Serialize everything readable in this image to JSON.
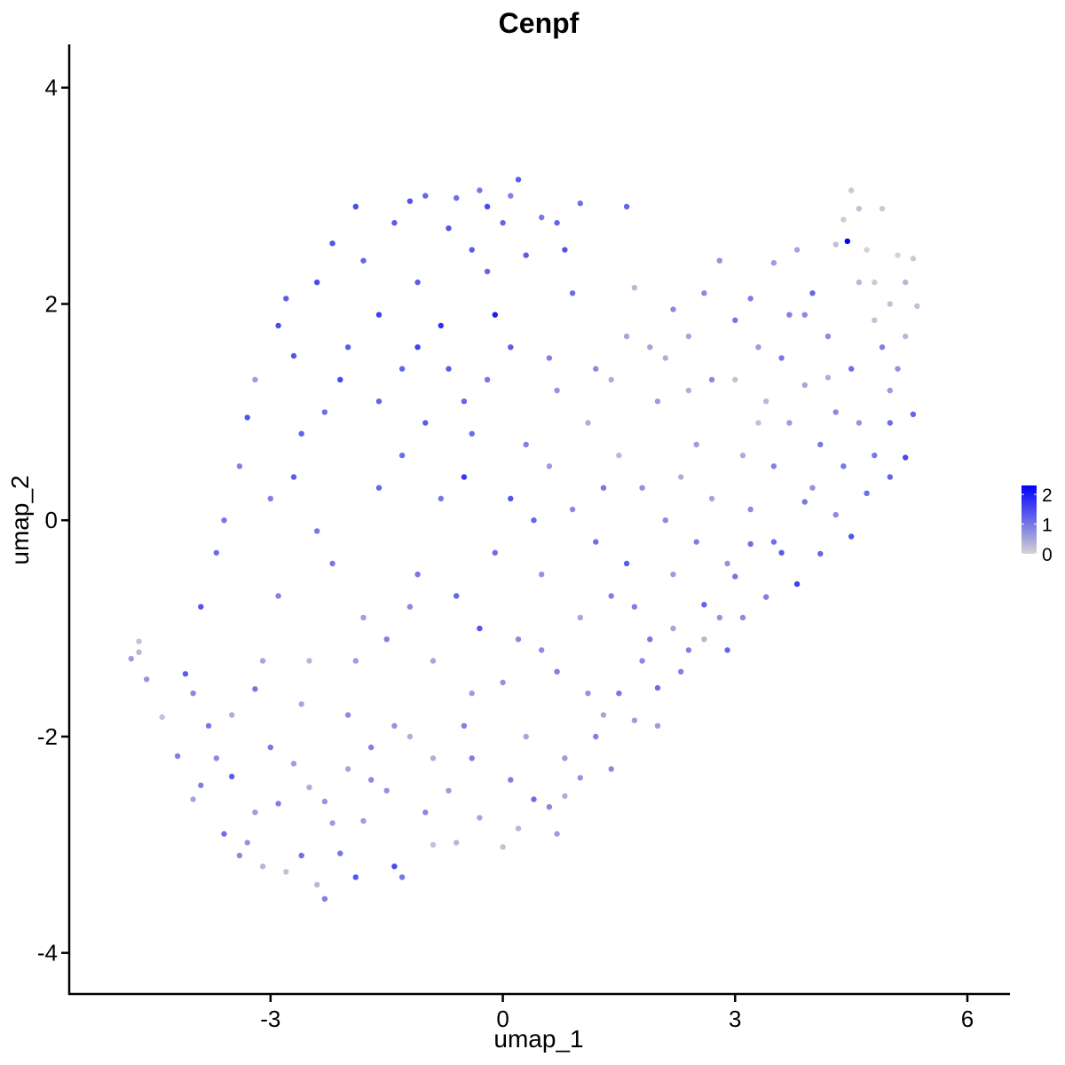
{
  "chart_data": {
    "type": "scatter",
    "title": "Cenpf",
    "xlabel": "umap_1",
    "ylabel": "umap_2",
    "xlim": [
      -5.6,
      6.55
    ],
    "ylim": [
      -4.38,
      4.4
    ],
    "x_ticks": [
      -3,
      0,
      3,
      6
    ],
    "x_tick_labels": [
      "-3",
      "0",
      "3",
      "6"
    ],
    "y_ticks": [
      -4,
      -2,
      0,
      2,
      4
    ],
    "y_tick_labels": [
      "-4",
      "-2",
      "0",
      "2",
      "4"
    ],
    "grid": false,
    "legend": {
      "placement": "right",
      "type": "colorbar",
      "breaks": [
        2,
        1,
        0
      ],
      "labels": [
        "2",
        "1",
        "0"
      ],
      "range": [
        0,
        2.3
      ]
    },
    "colors": {
      "low": "#d3d3d3",
      "high": "#0000ff"
    },
    "point_columns": [
      "umap_1",
      "umap_2",
      "expression"
    ],
    "points": [
      [
        -4.8,
        -1.28,
        0.6
      ],
      [
        -4.7,
        -1.22,
        0.3
      ],
      [
        -4.7,
        -1.12,
        0.2
      ],
      [
        -4.6,
        -1.47,
        0.7
      ],
      [
        -4.4,
        -1.82,
        0.2
      ],
      [
        -4.2,
        -2.18,
        0.9
      ],
      [
        -4.1,
        -1.42,
        1.3
      ],
      [
        -4.0,
        -1.6,
        0.8
      ],
      [
        -4.0,
        -2.58,
        0.5
      ],
      [
        -3.9,
        -2.45,
        0.9
      ],
      [
        -3.8,
        -1.9,
        1.0
      ],
      [
        -3.7,
        -2.2,
        0.8
      ],
      [
        -3.6,
        -2.9,
        1.1
      ],
      [
        -3.5,
        -2.37,
        1.3
      ],
      [
        -3.4,
        -3.1,
        0.8
      ],
      [
        -3.3,
        -2.98,
        0.7
      ],
      [
        -3.2,
        -1.56,
        1.0
      ],
      [
        -3.2,
        -2.7,
        0.6
      ],
      [
        -3.1,
        -3.2,
        0.3
      ],
      [
        -3.0,
        -2.1,
        1.0
      ],
      [
        -2.9,
        -2.62,
        0.9
      ],
      [
        -2.8,
        -3.25,
        0.2
      ],
      [
        -2.7,
        -2.25,
        0.6
      ],
      [
        -2.6,
        -3.1,
        1.1
      ],
      [
        -2.5,
        -2.47,
        0.4
      ],
      [
        -2.4,
        -3.37,
        0.3
      ],
      [
        -2.3,
        -3.5,
        0.9
      ],
      [
        -2.2,
        -2.8,
        0.6
      ],
      [
        -2.1,
        -3.08,
        1.0
      ],
      [
        -2.0,
        -2.3,
        0.5
      ],
      [
        -1.9,
        -3.3,
        1.4
      ],
      [
        -1.8,
        -2.78,
        0.6
      ],
      [
        -1.7,
        -2.1,
        0.9
      ],
      [
        -1.5,
        -2.5,
        0.7
      ],
      [
        -1.4,
        -3.2,
        1.5
      ],
      [
        -1.3,
        -3.3,
        1.0
      ],
      [
        -1.2,
        -2.0,
        0.4
      ],
      [
        -1.0,
        -2.7,
        0.8
      ],
      [
        -0.9,
        -3.0,
        0.2
      ],
      [
        -0.7,
        -2.5,
        0.6
      ],
      [
        -0.6,
        -2.98,
        0.3
      ],
      [
        -0.4,
        -2.2,
        0.9
      ],
      [
        -0.3,
        -2.75,
        0.5
      ],
      [
        0.0,
        -3.02,
        0.2
      ],
      [
        0.1,
        -2.4,
        0.9
      ],
      [
        0.2,
        -2.85,
        0.3
      ],
      [
        0.4,
        -2.58,
        1.1
      ],
      [
        0.6,
        -2.65,
        0.8
      ],
      [
        0.7,
        -2.9,
        0.6
      ],
      [
        0.8,
        -2.55,
        0.4
      ],
      [
        1.0,
        -2.38,
        0.7
      ],
      [
        1.2,
        -2.0,
        0.9
      ],
      [
        1.3,
        -1.8,
        0.5
      ],
      [
        1.5,
        -1.6,
        1.0
      ],
      [
        1.7,
        -1.85,
        0.6
      ],
      [
        1.8,
        -1.3,
        0.8
      ],
      [
        2.0,
        -1.55,
        1.1
      ],
      [
        2.2,
        -1.0,
        0.5
      ],
      [
        2.4,
        -1.2,
        0.9
      ],
      [
        2.6,
        -0.78,
        1.2
      ],
      [
        2.8,
        -0.9,
        0.7
      ],
      [
        3.0,
        -0.52,
        1.0
      ],
      [
        3.2,
        -0.22,
        1.1
      ],
      [
        3.4,
        -0.71,
        0.9
      ],
      [
        3.6,
        -0.3,
        1.3
      ],
      [
        3.8,
        -0.59,
        1.6
      ],
      [
        3.9,
        0.17,
        1.0
      ],
      [
        4.1,
        -0.31,
        1.2
      ],
      [
        4.3,
        0.05,
        0.8
      ],
      [
        4.5,
        -0.15,
        1.4
      ],
      [
        4.7,
        0.25,
        1.1
      ],
      [
        4.8,
        0.6,
        1.0
      ],
      [
        5.0,
        0.9,
        1.1
      ],
      [
        5.2,
        0.58,
        1.5
      ],
      [
        5.1,
        1.4,
        0.7
      ],
      [
        5.3,
        0.98,
        1.2
      ],
      [
        -3.9,
        -0.8,
        1.4
      ],
      [
        -3.7,
        -0.3,
        1.1
      ],
      [
        -3.6,
        0.0,
        1.0
      ],
      [
        -3.4,
        0.5,
        0.9
      ],
      [
        -3.3,
        0.95,
        1.4
      ],
      [
        -3.2,
        1.3,
        0.6
      ],
      [
        -3.0,
        0.2,
        0.9
      ],
      [
        -2.9,
        1.8,
        1.5
      ],
      [
        -2.8,
        2.05,
        1.3
      ],
      [
        -2.7,
        1.52,
        1.4
      ],
      [
        -2.6,
        0.8,
        1.2
      ],
      [
        -2.4,
        2.2,
        1.5
      ],
      [
        -2.3,
        1.0,
        1.1
      ],
      [
        -2.2,
        2.56,
        1.4
      ],
      [
        -2.0,
        1.6,
        1.3
      ],
      [
        -1.9,
        2.9,
        1.5
      ],
      [
        -1.8,
        2.4,
        1.2
      ],
      [
        -1.6,
        1.9,
        1.6
      ],
      [
        -1.4,
        2.75,
        1.3
      ],
      [
        -1.3,
        1.4,
        1.2
      ],
      [
        -1.2,
        2.95,
        1.4
      ],
      [
        -1.1,
        2.2,
        1.3
      ],
      [
        -1.0,
        3.0,
        1.2
      ],
      [
        -0.8,
        1.8,
        1.8
      ],
      [
        -0.7,
        2.7,
        1.4
      ],
      [
        -0.6,
        2.98,
        1.1
      ],
      [
        -0.5,
        1.1,
        1.2
      ],
      [
        -0.4,
        2.5,
        1.3
      ],
      [
        -0.3,
        3.05,
        1.0
      ],
      [
        -0.2,
        2.9,
        1.5
      ],
      [
        -0.1,
        1.9,
        2.0
      ],
      [
        0.0,
        2.75,
        1.2
      ],
      [
        0.1,
        3.0,
        0.9
      ],
      [
        0.2,
        3.15,
        1.3
      ],
      [
        0.3,
        2.45,
        1.3
      ],
      [
        0.5,
        2.8,
        1.0
      ],
      [
        0.6,
        1.5,
        0.9
      ],
      [
        0.7,
        2.75,
        1.2
      ],
      [
        0.8,
        2.5,
        1.4
      ],
      [
        1.0,
        2.93,
        1.1
      ],
      [
        1.2,
        1.4,
        0.8
      ],
      [
        1.4,
        1.3,
        0.4
      ],
      [
        1.6,
        2.9,
        1.2
      ],
      [
        1.7,
        2.15,
        0.3
      ],
      [
        1.9,
        1.6,
        0.5
      ],
      [
        2.0,
        1.1,
        0.6
      ],
      [
        2.2,
        1.95,
        0.8
      ],
      [
        2.4,
        1.2,
        0.4
      ],
      [
        2.5,
        0.7,
        0.6
      ],
      [
        2.6,
        2.1,
        0.8
      ],
      [
        2.8,
        2.4,
        0.7
      ],
      [
        3.0,
        1.85,
        1.0
      ],
      [
        3.2,
        2.05,
        0.9
      ],
      [
        3.3,
        0.9,
        0.2
      ],
      [
        3.5,
        2.38,
        0.6
      ],
      [
        3.6,
        1.5,
        1.0
      ],
      [
        3.8,
        2.5,
        0.5
      ],
      [
        3.9,
        1.9,
        0.8
      ],
      [
        4.0,
        2.1,
        1.2
      ],
      [
        4.2,
        1.32,
        0.4
      ],
      [
        4.3,
        2.55,
        0.2
      ],
      [
        4.4,
        2.78,
        0.1
      ],
      [
        4.45,
        2.58,
        2.3
      ],
      [
        4.5,
        3.05,
        0.1
      ],
      [
        4.6,
        2.88,
        0.2
      ],
      [
        4.7,
        2.5,
        0.0
      ],
      [
        4.8,
        2.2,
        0.1
      ],
      [
        4.9,
        2.88,
        0.1
      ],
      [
        5.0,
        2.0,
        0.2
      ],
      [
        5.1,
        2.45,
        0.0
      ],
      [
        5.2,
        2.2,
        0.3
      ],
      [
        5.3,
        2.42,
        0.1
      ],
      [
        5.35,
        1.98,
        0.2
      ],
      [
        -2.5,
        -1.3,
        0.3
      ],
      [
        -2.2,
        -0.4,
        1.0
      ],
      [
        -2.0,
        -1.8,
        0.8
      ],
      [
        -1.8,
        -0.9,
        0.6
      ],
      [
        -1.6,
        0.3,
        1.2
      ],
      [
        -1.5,
        -1.1,
        0.9
      ],
      [
        -1.3,
        0.6,
        1.1
      ],
      [
        -1.1,
        -0.5,
        1.0
      ],
      [
        -1.0,
        0.9,
        1.3
      ],
      [
        -0.9,
        -1.3,
        0.5
      ],
      [
        -0.8,
        0.2,
        1.0
      ],
      [
        -0.6,
        -0.7,
        1.2
      ],
      [
        -0.5,
        0.4,
        1.7
      ],
      [
        -0.4,
        -1.6,
        0.6
      ],
      [
        -0.2,
        1.3,
        1.0
      ],
      [
        -0.1,
        -0.3,
        1.1
      ],
      [
        0.1,
        0.2,
        1.4
      ],
      [
        0.2,
        -1.1,
        0.8
      ],
      [
        0.3,
        0.7,
        0.9
      ],
      [
        0.5,
        -0.5,
        0.7
      ],
      [
        0.6,
        0.5,
        0.6
      ],
      [
        0.7,
        -1.4,
        0.9
      ],
      [
        0.9,
        0.1,
        0.8
      ],
      [
        1.0,
        -0.9,
        0.5
      ],
      [
        1.1,
        0.9,
        0.4
      ],
      [
        1.2,
        -0.2,
        1.1
      ],
      [
        1.4,
        -0.7,
        0.9
      ],
      [
        1.5,
        0.6,
        0.3
      ],
      [
        1.6,
        -0.4,
        1.3
      ],
      [
        1.8,
        0.3,
        0.7
      ],
      [
        1.9,
        -1.1,
        1.0
      ],
      [
        2.1,
        0.0,
        0.8
      ],
      [
        2.2,
        -0.5,
        0.6
      ],
      [
        2.3,
        0.4,
        0.4
      ],
      [
        2.5,
        -0.2,
        0.9
      ],
      [
        2.7,
        0.2,
        0.5
      ],
      [
        2.9,
        -0.4,
        0.7
      ],
      [
        3.1,
        0.6,
        0.4
      ],
      [
        3.2,
        0.1,
        0.8
      ],
      [
        3.4,
        1.1,
        0.3
      ],
      [
        3.5,
        0.5,
        0.9
      ],
      [
        3.7,
        0.9,
        0.6
      ],
      [
        3.9,
        1.25,
        0.5
      ],
      [
        4.1,
        0.7,
        1.0
      ],
      [
        4.3,
        1.0,
        0.8
      ],
      [
        4.5,
        1.4,
        1.1
      ],
      [
        4.6,
        0.9,
        0.7
      ],
      [
        4.9,
        1.6,
        0.9
      ],
      [
        5.0,
        1.2,
        0.6
      ],
      [
        -3.5,
        -1.8,
        0.4
      ],
      [
        -3.1,
        -1.3,
        0.5
      ],
      [
        -2.9,
        -0.7,
        0.9
      ],
      [
        -2.6,
        -1.7,
        0.5
      ],
      [
        -2.7,
        0.4,
        1.3
      ],
      [
        -2.4,
        -0.1,
        1.0
      ],
      [
        -2.3,
        -2.6,
        0.7
      ],
      [
        -2.1,
        1.3,
        1.5
      ],
      [
        -1.9,
        -1.3,
        0.6
      ],
      [
        -1.7,
        -2.4,
        0.8
      ],
      [
        -1.6,
        1.1,
        1.2
      ],
      [
        -1.4,
        -1.9,
        0.7
      ],
      [
        -1.2,
        -0.8,
        0.8
      ],
      [
        -1.1,
        1.6,
        1.6
      ],
      [
        -0.9,
        -2.2,
        0.4
      ],
      [
        -0.7,
        1.4,
        1.3
      ],
      [
        -0.5,
        -1.9,
        0.9
      ],
      [
        -0.4,
        0.8,
        1.1
      ],
      [
        -0.3,
        -1.0,
        1.4
      ],
      [
        -0.2,
        2.3,
        1.2
      ],
      [
        0.0,
        -1.5,
        0.7
      ],
      [
        0.1,
        1.6,
        1.3
      ],
      [
        0.3,
        -2.0,
        0.5
      ],
      [
        0.4,
        0.0,
        1.2
      ],
      [
        0.5,
        -1.2,
        0.8
      ],
      [
        0.7,
        1.2,
        0.7
      ],
      [
        0.8,
        -2.2,
        0.6
      ],
      [
        0.9,
        2.1,
        1.1
      ],
      [
        1.1,
        -1.6,
        0.7
      ],
      [
        1.3,
        0.3,
        1.0
      ],
      [
        1.4,
        -2.3,
        0.8
      ],
      [
        1.6,
        1.7,
        0.5
      ],
      [
        1.7,
        -0.8,
        0.9
      ],
      [
        2.0,
        -1.9,
        0.6
      ],
      [
        2.1,
        1.5,
        0.4
      ],
      [
        2.3,
        -1.4,
        0.9
      ],
      [
        2.4,
        1.7,
        0.5
      ],
      [
        2.6,
        -1.1,
        0.3
      ],
      [
        2.7,
        1.3,
        0.8
      ],
      [
        2.9,
        -1.2,
        1.2
      ],
      [
        3.0,
        1.3,
        0.2
      ],
      [
        3.1,
        -0.9,
        0.8
      ],
      [
        3.3,
        1.6,
        0.6
      ],
      [
        3.5,
        -0.2,
        1.1
      ],
      [
        3.7,
        1.9,
        0.9
      ],
      [
        4.0,
        0.3,
        0.7
      ],
      [
        4.2,
        1.7,
        0.8
      ],
      [
        4.4,
        0.5,
        1.0
      ],
      [
        4.6,
        2.2,
        0.3
      ],
      [
        4.8,
        1.85,
        0.2
      ],
      [
        5.0,
        0.4,
        1.2
      ],
      [
        5.2,
        1.7,
        0.3
      ]
    ]
  }
}
